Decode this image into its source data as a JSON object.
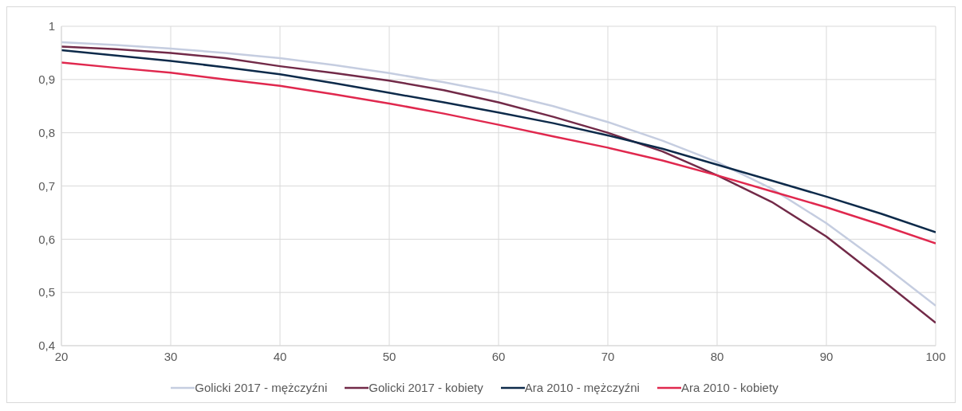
{
  "chart_data": {
    "type": "line",
    "x": [
      20,
      25,
      30,
      35,
      40,
      45,
      50,
      55,
      60,
      65,
      70,
      75,
      80,
      85,
      90,
      95,
      100
    ],
    "series": [
      {
        "name": "Golicki 2017 - mężczyźni",
        "color": "#c5cde0",
        "values": [
          0.97,
          0.965,
          0.958,
          0.95,
          0.94,
          0.927,
          0.912,
          0.895,
          0.875,
          0.85,
          0.82,
          0.785,
          0.745,
          0.695,
          0.63,
          0.555,
          0.475
        ]
      },
      {
        "name": "Golicki 2017 - kobiety",
        "color": "#722a48",
        "values": [
          0.962,
          0.957,
          0.95,
          0.94,
          0.925,
          0.912,
          0.898,
          0.88,
          0.857,
          0.83,
          0.8,
          0.765,
          0.72,
          0.67,
          0.605,
          0.525,
          0.443
        ]
      },
      {
        "name": "Ara 2010 - mężczyźni",
        "color": "#0d2a4a",
        "values": [
          0.955,
          0.945,
          0.935,
          0.923,
          0.91,
          0.893,
          0.875,
          0.857,
          0.838,
          0.818,
          0.795,
          0.77,
          0.74,
          0.71,
          0.68,
          0.648,
          0.613
        ]
      },
      {
        "name": "Ara 2010 - kobiety",
        "color": "#e0284e",
        "values": [
          0.932,
          0.922,
          0.913,
          0.9,
          0.888,
          0.872,
          0.855,
          0.836,
          0.815,
          0.793,
          0.772,
          0.748,
          0.72,
          0.69,
          0.66,
          0.627,
          0.592
        ]
      }
    ],
    "xlim": [
      20,
      100
    ],
    "xticks": [
      20,
      30,
      40,
      50,
      60,
      70,
      80,
      90,
      100
    ],
    "ylim": [
      0.4,
      1
    ],
    "yticks": [
      {
        "value": 0.4,
        "label": "0,4"
      },
      {
        "value": 0.5,
        "label": "0,5"
      },
      {
        "value": 0.6,
        "label": "0,6"
      },
      {
        "value": 0.7,
        "label": "0,7"
      },
      {
        "value": 0.8,
        "label": "0,8"
      },
      {
        "value": 0.9,
        "label": "0,9"
      },
      {
        "value": 1,
        "label": "1"
      }
    ],
    "grid": true,
    "legend": "bottom",
    "marker": "none",
    "line_style": "solid"
  }
}
